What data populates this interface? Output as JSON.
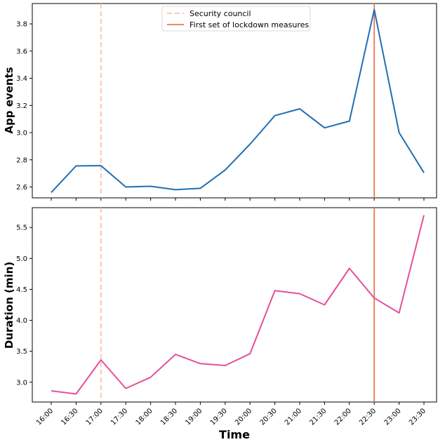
{
  "chart_data": {
    "type": "line",
    "x": [
      "16:00",
      "16:30",
      "17:00",
      "17:30",
      "18:00",
      "18:30",
      "19:00",
      "19:30",
      "20:00",
      "20:30",
      "21:00",
      "21:30",
      "22:00",
      "22:30",
      "23:00",
      "23:30"
    ],
    "xlabel": "Time",
    "events": [
      {
        "label": "Security council",
        "x": "17:00",
        "style": "dashed",
        "color": "#f8c2a4"
      },
      {
        "label": "First set of lockdown measures",
        "x": "22:30",
        "style": "solid",
        "color": "#ee7752"
      }
    ],
    "legend_position": "top-center",
    "subplots": [
      {
        "ylabel": "App events",
        "ylim": [
          2.52,
          3.95
        ],
        "yticks": [
          "2.6",
          "2.8",
          "3.0",
          "3.2",
          "3.4",
          "3.6",
          "3.8"
        ],
        "series": [
          {
            "name": "App events",
            "color": "#1f6fb4",
            "values": [
              2.56,
              2.755,
              2.757,
              2.6,
              2.605,
              2.58,
              2.59,
              2.725,
              2.915,
              3.125,
              3.175,
              3.035,
              3.085,
              3.905,
              3.0,
              2.705
            ]
          }
        ]
      },
      {
        "ylabel": "Duration (min)",
        "ylim": [
          2.68,
          5.82
        ],
        "yticks": [
          "3.0",
          "3.5",
          "4.0",
          "4.5",
          "5.0",
          "5.5"
        ],
        "series": [
          {
            "name": "Duration (min)",
            "color": "#e54f9a",
            "values": [
              2.86,
              2.81,
              3.36,
              2.9,
              3.08,
              3.45,
              3.3,
              3.27,
              3.46,
              4.48,
              4.43,
              4.25,
              4.84,
              4.36,
              4.12,
              5.7
            ]
          }
        ]
      }
    ]
  }
}
